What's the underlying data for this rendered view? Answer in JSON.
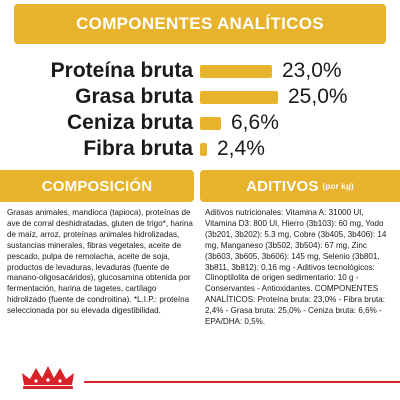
{
  "header": {
    "title": "COMPONENTES ANALÍTICOS"
  },
  "analysis": [
    {
      "label": "Proteína bruta",
      "value": "23,0%",
      "amount": 23.0
    },
    {
      "label": "Grasa bruta",
      "value": "25,0%",
      "amount": 25.0
    },
    {
      "label": "Ceniza bruta",
      "value": "6,6%",
      "amount": 6.6
    },
    {
      "label": "Fibra bruta",
      "value": "2,4%",
      "amount": 2.4
    }
  ],
  "composition": {
    "title": "COMPOSICIÓN",
    "text": "Grasas animales, mandioca (tapioca), proteínas de ave de corral deshidratadas, gluten de trigo*, harina de maíz, arroz, proteínas animales hidrolizadas, sustancias minerales, fibras vegetales, aceite de pescado, pulpa de remolacha, aceite de soja, productos de levaduras, levaduras (fuente de manano-oligosacáridos), glucosamina obtenida por fermentación, harina de tagetes, cartílago hidrolizado (fuente de condroitina). *L.I.P.: proteína seleccionada por su elevada digestibilidad."
  },
  "additives": {
    "title": "ADITIVOS",
    "unit": "(por kg)",
    "text": "Aditivos nutricionales: Vitamina A: 31000 UI, Vitamina D3: 800 UI, Hierro (3b103): 60 mg, Yodo (3b201, 3b202): 5,3 mg, Cobre (3b405, 3b406): 14 mg, Manganeso (3b502, 3b504): 67 mg, Zinc (3b603, 3b605, 3b606): 145 mg, Selenio (3b801, 3b811, 3b812): 0,16 mg - Aditivos tecnológicos: Clinoptilolita de origen sedimentario: 10 g - Conservantes - Antioxidantes. COMPONENTES ANALÍTICOS: Proteína bruta: 23,0% - Fibra bruta: 2,4% - Grasa bruta: 25,0% - Ceniza bruta: 6,6% - EPA/DHA: 0,5%."
  },
  "colors": {
    "accent": "#e8b32c",
    "brand_red": "#d8232a"
  },
  "logo": {
    "icon": "royal-canin-crown-icon"
  }
}
